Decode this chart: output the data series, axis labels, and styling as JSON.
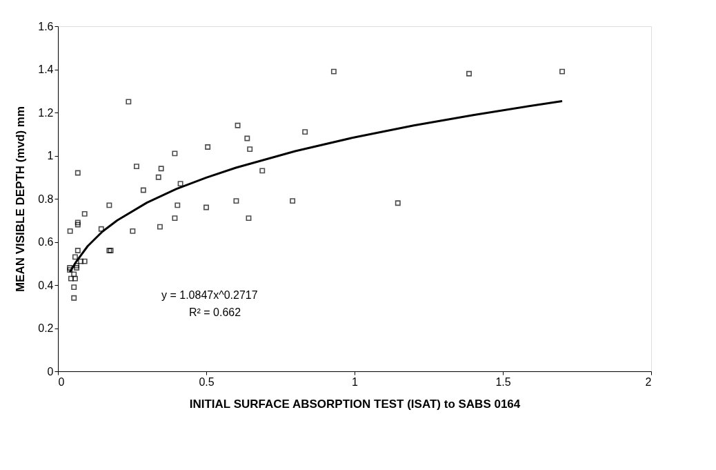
{
  "chart_data": {
    "type": "scatter",
    "xlabel": "INITIAL SURFACE ABSORPTION TEST (ISAT) to SABS 0164",
    "ylabel": "MEAN VISIBLE DEPTH (mvd) mm",
    "xlim": [
      0,
      2
    ],
    "xticks": [
      0,
      0.5,
      1,
      1.5,
      2
    ],
    "ylim": [
      0,
      1.6
    ],
    "yticks": [
      0,
      0.2,
      0.4,
      0.6,
      0.8,
      1,
      1.2,
      1.4,
      1.6
    ],
    "grid": false,
    "marker": "square",
    "annotations": [
      "y = 1.0847x^0.2717",
      "R² = 0.662"
    ],
    "series": [
      {
        "color": "#000000",
        "x": [
          0.041,
          0.067,
          0.067,
          0.067,
          0.09,
          0.173,
          0.146,
          0.173,
          0.178,
          0.067,
          0.058,
          0.09,
          0.077,
          0.04,
          0.04,
          0.063,
          0.063,
          0.054,
          0.044,
          0.058,
          0.054,
          0.054,
          0.265,
          0.288,
          0.252,
          0.339,
          0.348,
          0.394,
          0.413,
          0.403,
          0.394,
          0.344,
          0.5,
          0.238,
          0.606,
          0.638,
          0.647,
          0.505,
          0.689,
          0.601,
          0.643,
          0.833,
          0.791,
          0.93,
          1.386,
          1.7,
          1.146
        ],
        "values": [
          0.65,
          0.92,
          0.69,
          0.68,
          0.73,
          0.77,
          0.66,
          0.56,
          0.56,
          0.56,
          0.53,
          0.51,
          0.51,
          0.48,
          0.47,
          0.49,
          0.48,
          0.45,
          0.43,
          0.43,
          0.39,
          0.34,
          0.95,
          0.84,
          0.65,
          0.9,
          0.94,
          1.01,
          0.87,
          0.77,
          0.71,
          0.67,
          0.76,
          1.25,
          1.14,
          1.08,
          1.03,
          1.04,
          0.93,
          0.79,
          0.71,
          1.11,
          0.79,
          1.39,
          1.38,
          1.39,
          0.78
        ]
      },
      {
        "type": "line",
        "color": "#000000",
        "marker": "none",
        "line_style": "solid",
        "x": [
          0.04,
          0.06,
          0.1,
          0.15,
          0.2,
          0.3,
          0.4,
          0.5,
          0.6,
          0.8,
          1.0,
          1.2,
          1.4,
          1.6,
          1.7
        ],
        "values": [
          0.46,
          0.505,
          0.58,
          0.648,
          0.7,
          0.782,
          0.846,
          0.898,
          0.944,
          1.021,
          1.085,
          1.14,
          1.188,
          1.232,
          1.253
        ]
      }
    ]
  }
}
